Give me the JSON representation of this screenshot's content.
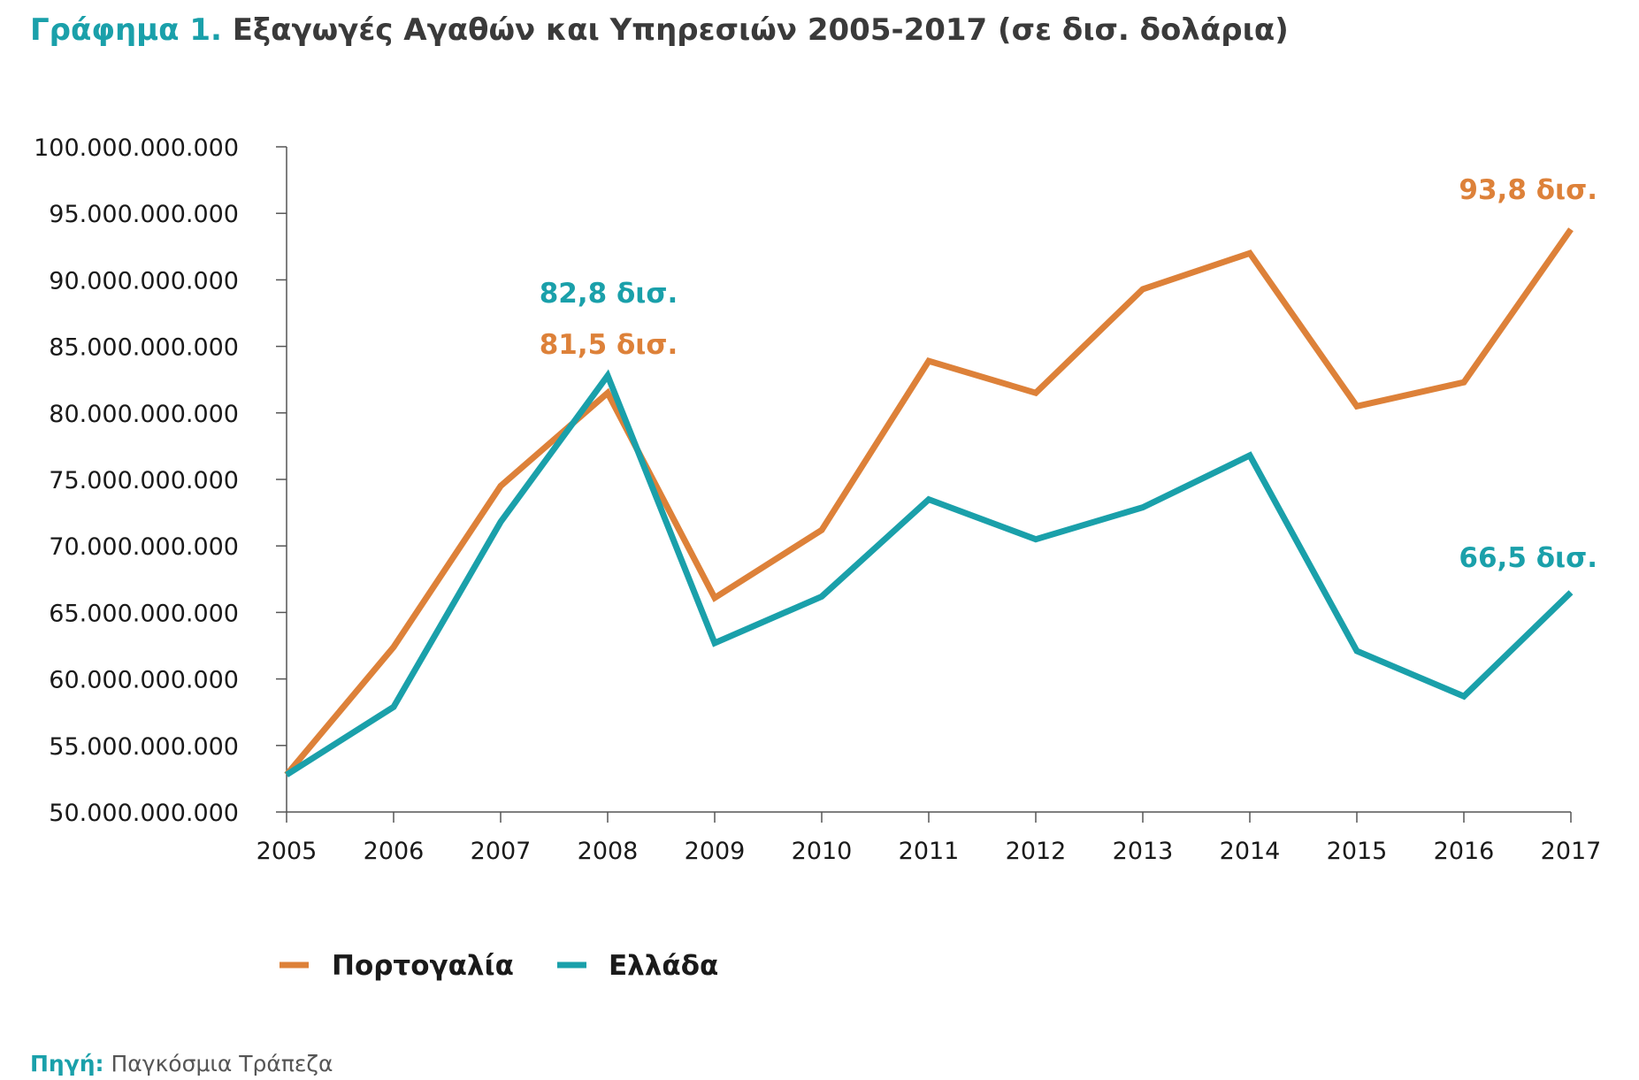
{
  "title": {
    "lead": "Γράφημα 1.",
    "text": "Εξαγωγές Αγαθών και Υπηρεσιών 2005-2017 (σε δισ. δολάρια)"
  },
  "source": {
    "label": "Πηγή:",
    "text": "Παγκόσμια Τράπεζα"
  },
  "chart_data": {
    "type": "line",
    "categories": [
      "2005",
      "2006",
      "2007",
      "2008",
      "2009",
      "2010",
      "2011",
      "2012",
      "2013",
      "2014",
      "2015",
      "2016",
      "2017"
    ],
    "ylim": [
      50000000000,
      100000000000
    ],
    "yticks": [
      50000000000,
      55000000000,
      60000000000,
      65000000000,
      70000000000,
      75000000000,
      80000000000,
      85000000000,
      90000000000,
      95000000000,
      100000000000
    ],
    "ytick_labels": [
      "50.000.000.000",
      "55.000.000.000",
      "60.000.000.000",
      "65.000.000.000",
      "70.000.000.000",
      "75.000.000.000",
      "80.000.000.000",
      "85.000.000.000",
      "90.000.000.000",
      "95.000.000.000",
      "100.000.000.000"
    ],
    "legend_position": "bottom-left",
    "grid": false,
    "series": [
      {
        "name": "Πορτογαλία",
        "color": "#dd8139",
        "values": [
          52800000000,
          62400000000,
          74500000000,
          81500000000,
          66100000000,
          71200000000,
          83900000000,
          81500000000,
          89300000000,
          92000000000,
          80500000000,
          82300000000,
          93800000000
        ]
      },
      {
        "name": "Ελλάδα",
        "color": "#1aa0aa",
        "values": [
          52800000000,
          57900000000,
          71800000000,
          82800000000,
          62700000000,
          66200000000,
          73500000000,
          70500000000,
          72900000000,
          76800000000,
          62100000000,
          58700000000,
          66500000000
        ]
      }
    ],
    "annotations": [
      {
        "series": 1,
        "index": 3,
        "text": "82,8 δισ."
      },
      {
        "series": 0,
        "index": 3,
        "text": "81,5 δισ."
      },
      {
        "series": 0,
        "index": 12,
        "text": "93,8 δισ."
      },
      {
        "series": 1,
        "index": 12,
        "text": "66,5 δισ."
      }
    ]
  }
}
